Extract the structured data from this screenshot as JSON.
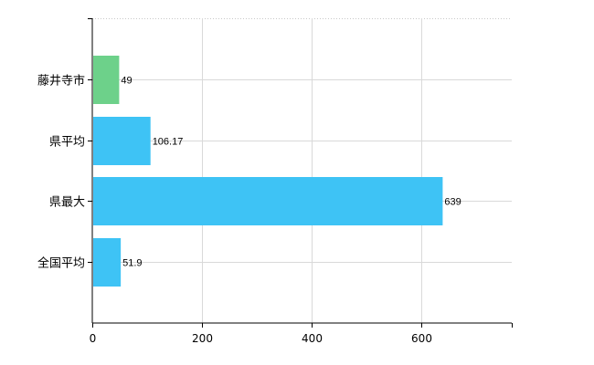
{
  "chart_data": {
    "type": "bar",
    "orientation": "horizontal",
    "categories": [
      "藤井寺市",
      "県平均",
      "県最大",
      "全国平均"
    ],
    "values": [
      49,
      106.17,
      639,
      51.9
    ],
    "value_labels": [
      "49",
      "106.17",
      "639",
      "51.9"
    ],
    "bar_colors": [
      "#6dd18a",
      "#3ec3f5",
      "#3ec3f5",
      "#3ec3f5"
    ],
    "xlim": [
      0,
      765
    ],
    "xticks": [
      0,
      200,
      400,
      600
    ],
    "xtick_labels": [
      "0",
      "200",
      "400",
      "600"
    ],
    "grid": true,
    "title": "",
    "xlabel": "",
    "ylabel": ""
  }
}
